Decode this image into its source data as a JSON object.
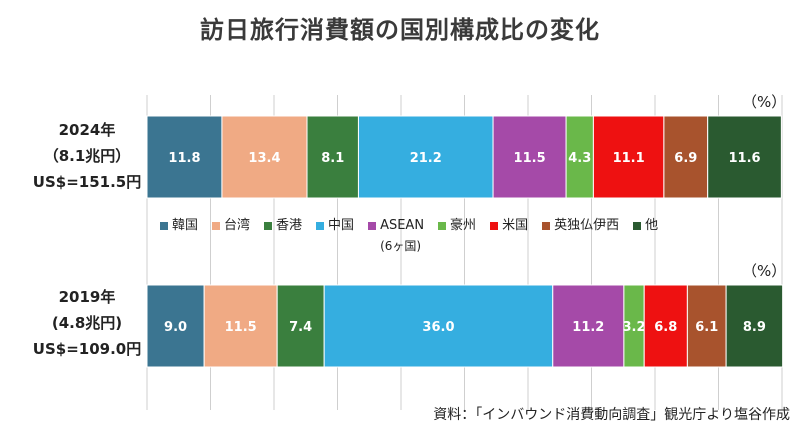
{
  "title": "訪日旅行消費額の国別構成比の変化",
  "unit_label": "（%）",
  "source_note": "資料：「インバウンド消費動向調査」観光庁より塩谷作成",
  "rows": [
    {
      "year": "2024年",
      "sub": "（8.1兆円）",
      "fx": "US$=151.5円"
    },
    {
      "year": "2019年",
      "sub": "(4.8兆円)",
      "fx": "US$=109.0円"
    }
  ],
  "legend_sub": "(6ヶ国)",
  "colors": [
    "#3b7591",
    "#f0aa84",
    "#3a7f3e",
    "#35aee0",
    "#a54aa8",
    "#6ab84a",
    "#ee1111",
    "#a8532d",
    "#2a5a30"
  ],
  "chart_data": {
    "type": "bar",
    "orientation": "horizontal-stacked-100",
    "title": "訪日旅行消費額の国別構成比の変化",
    "categories": [
      "2024年",
      "2019年"
    ],
    "series": [
      {
        "name": "韓国",
        "values": [
          11.8,
          9.0
        ]
      },
      {
        "name": "台湾",
        "values": [
          13.4,
          11.5
        ]
      },
      {
        "name": "香港",
        "values": [
          8.1,
          7.4
        ]
      },
      {
        "name": "中国",
        "values": [
          21.2,
          36.0
        ]
      },
      {
        "name": "ASEAN",
        "values": [
          11.5,
          11.2
        ]
      },
      {
        "name": "豪州",
        "values": [
          4.3,
          3.2
        ]
      },
      {
        "name": "米国",
        "values": [
          11.1,
          6.8
        ]
      },
      {
        "name": "英独仏伊西",
        "values": [
          6.9,
          6.1
        ]
      },
      {
        "name": "他",
        "values": [
          11.6,
          8.9
        ]
      }
    ],
    "xlim": [
      0,
      100
    ],
    "grid": true,
    "legend_position": "between-bars"
  }
}
